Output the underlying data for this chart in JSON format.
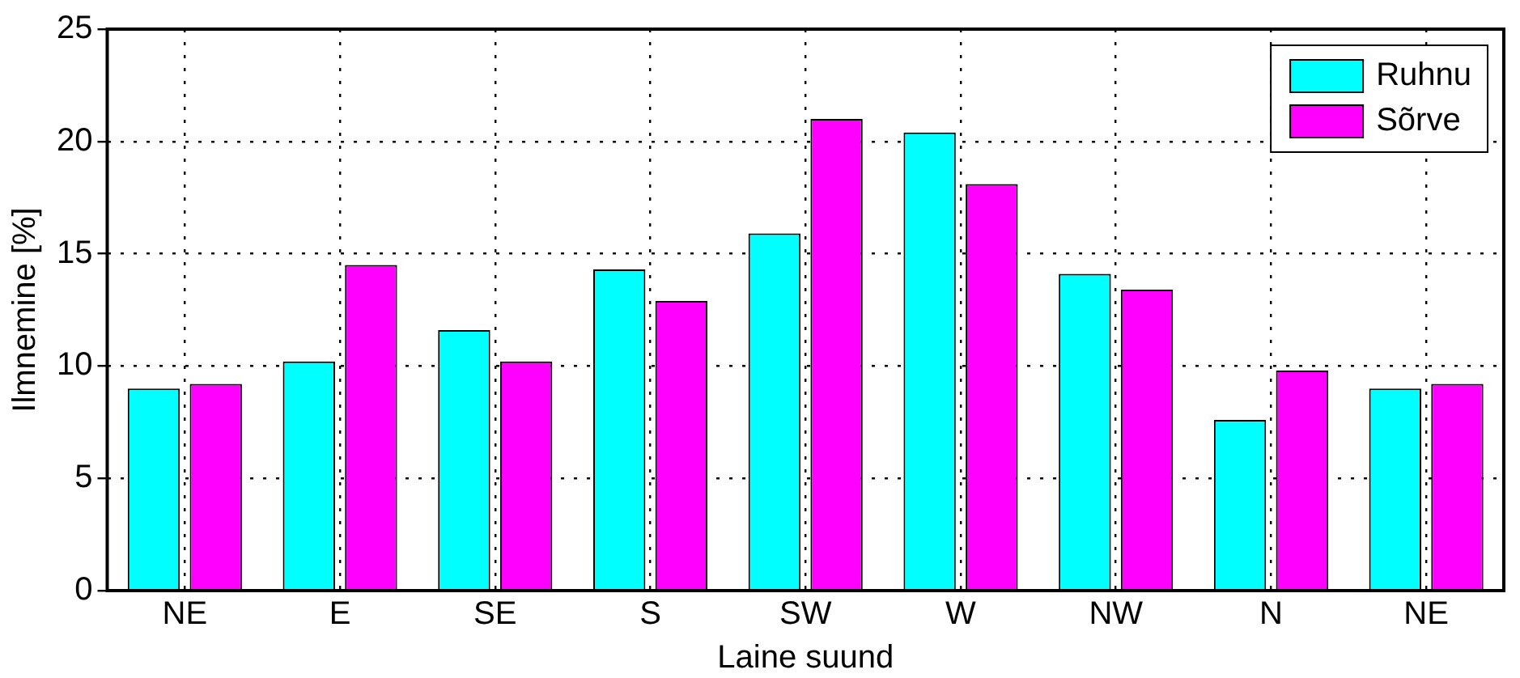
{
  "chart_data": {
    "type": "bar",
    "xlabel": "Laine suund",
    "ylabel": "Ilmnemine [%]",
    "categories": [
      "NE",
      "E",
      "SE",
      "S",
      "SW",
      "W",
      "NW",
      "N",
      "NE"
    ],
    "series": [
      {
        "name": "Ruhnu",
        "color": "#00ffff",
        "values": [
          9.0,
          10.2,
          11.6,
          14.3,
          15.9,
          20.4,
          14.1,
          7.6,
          9.0
        ]
      },
      {
        "name": "Sõrve",
        "color": "#ff00ff",
        "values": [
          9.2,
          14.5,
          10.2,
          12.9,
          21.0,
          18.1,
          13.4,
          9.8,
          9.2
        ]
      }
    ],
    "ylim": [
      0,
      25
    ],
    "yticks": [
      0,
      5,
      10,
      15,
      20,
      25
    ],
    "grid": true,
    "legend": "top right"
  }
}
